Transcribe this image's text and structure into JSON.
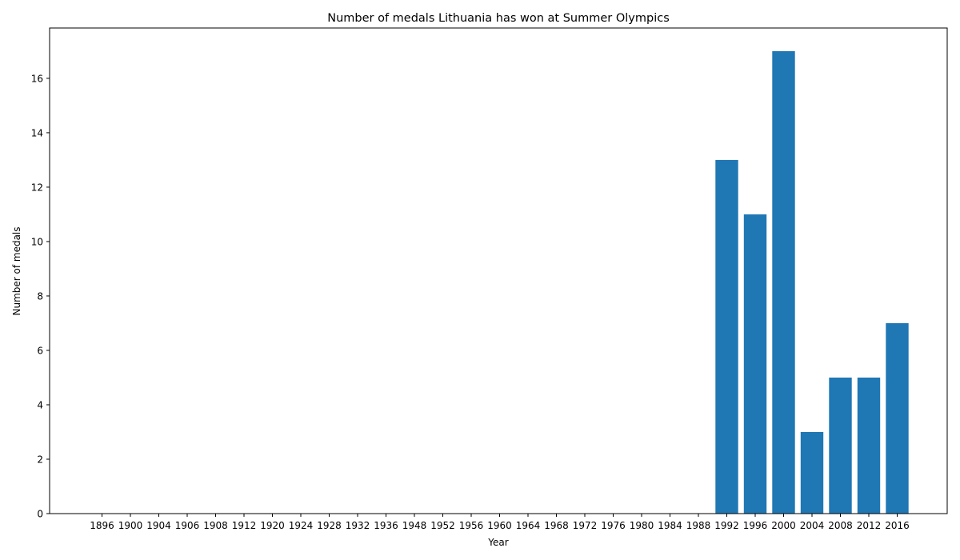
{
  "chart_data": {
    "type": "bar",
    "title": "Number of medals Lithuania has won at Summer Olympics",
    "xlabel": "Year",
    "ylabel": "Number of medals",
    "categories": [
      "1896",
      "1900",
      "1904",
      "1906",
      "1908",
      "1912",
      "1920",
      "1924",
      "1928",
      "1932",
      "1936",
      "1948",
      "1952",
      "1956",
      "1960",
      "1964",
      "1968",
      "1972",
      "1976",
      "1980",
      "1984",
      "1988",
      "1992",
      "1996",
      "2000",
      "2004",
      "2008",
      "2012",
      "2016"
    ],
    "values": [
      0,
      0,
      0,
      0,
      0,
      0,
      0,
      0,
      0,
      0,
      0,
      0,
      0,
      0,
      0,
      0,
      0,
      0,
      0,
      0,
      0,
      0,
      13,
      11,
      17,
      3,
      5,
      5,
      7
    ],
    "yticks": [
      0,
      2,
      4,
      6,
      8,
      10,
      12,
      14,
      16
    ],
    "ylim": [
      0,
      17.85
    ],
    "bar_color": "#1f77b4",
    "grid": false,
    "legend": "none"
  }
}
